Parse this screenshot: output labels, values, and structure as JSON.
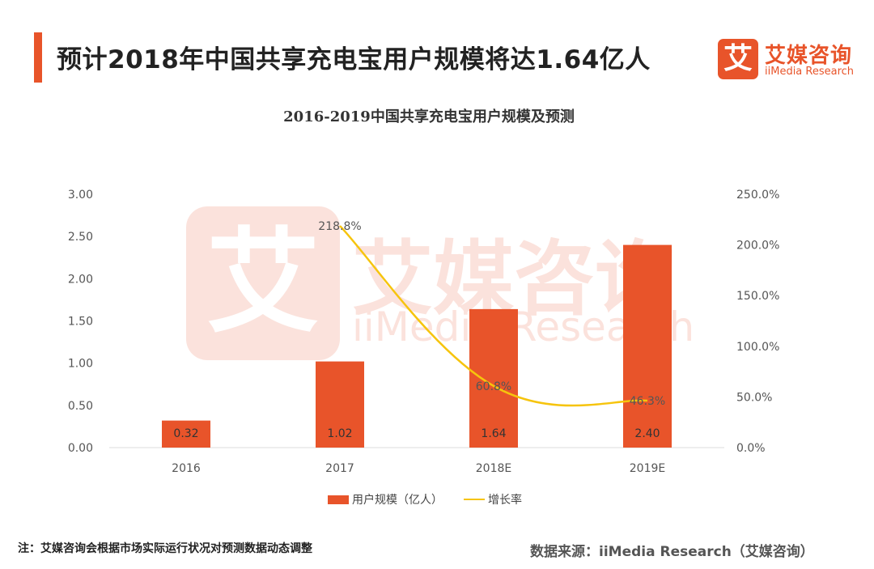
{
  "page_title": "预计2018年中国共享充电宝用户规模将达1.64亿人",
  "logo": {
    "cn": "艾媒咨询",
    "en": "iiMedia Research",
    "mark": "艾"
  },
  "watermark": {
    "cn": "艾媒咨询",
    "en": "iiMedia Research",
    "mark": "艾"
  },
  "colors": {
    "accent": "#e8542a",
    "line": "#f6c40d",
    "axis": "#dddddd"
  },
  "chart_data": {
    "type": "bar+line",
    "title": "2016-2019中国共享充电宝用户规模及预测",
    "categories": [
      "2016",
      "2017",
      "2018E",
      "2019E"
    ],
    "series": [
      {
        "name": "用户规模（亿人）",
        "type": "bar",
        "axis": "left",
        "values": [
          0.32,
          1.02,
          1.64,
          2.4
        ],
        "labels": [
          "0.32",
          "1.02",
          "1.64",
          "2.40"
        ]
      },
      {
        "name": "增长率",
        "type": "line",
        "axis": "right",
        "values": [
          null,
          218.8,
          60.8,
          46.3
        ],
        "labels": [
          "",
          "218.8%",
          "60.8%",
          "46.3%"
        ]
      }
    ],
    "y_left": {
      "min": 0,
      "max": 3,
      "ticks": [
        "0.00",
        "0.50",
        "1.00",
        "1.50",
        "2.00",
        "2.50",
        "3.00"
      ]
    },
    "y_right": {
      "min": 0,
      "max": 250,
      "ticks": [
        "0.0%",
        "50.0%",
        "100.0%",
        "150.0%",
        "200.0%",
        "250.0%"
      ]
    },
    "legend_position": "bottom-center",
    "grid": false
  },
  "legend": {
    "bar": "用户规模（亿人）",
    "line": "增长率"
  },
  "footnote": "注：艾媒咨询会根据市场实际运行状况对预测数据动态调整",
  "source": "数据来源：iiMedia Research（艾媒咨询）"
}
